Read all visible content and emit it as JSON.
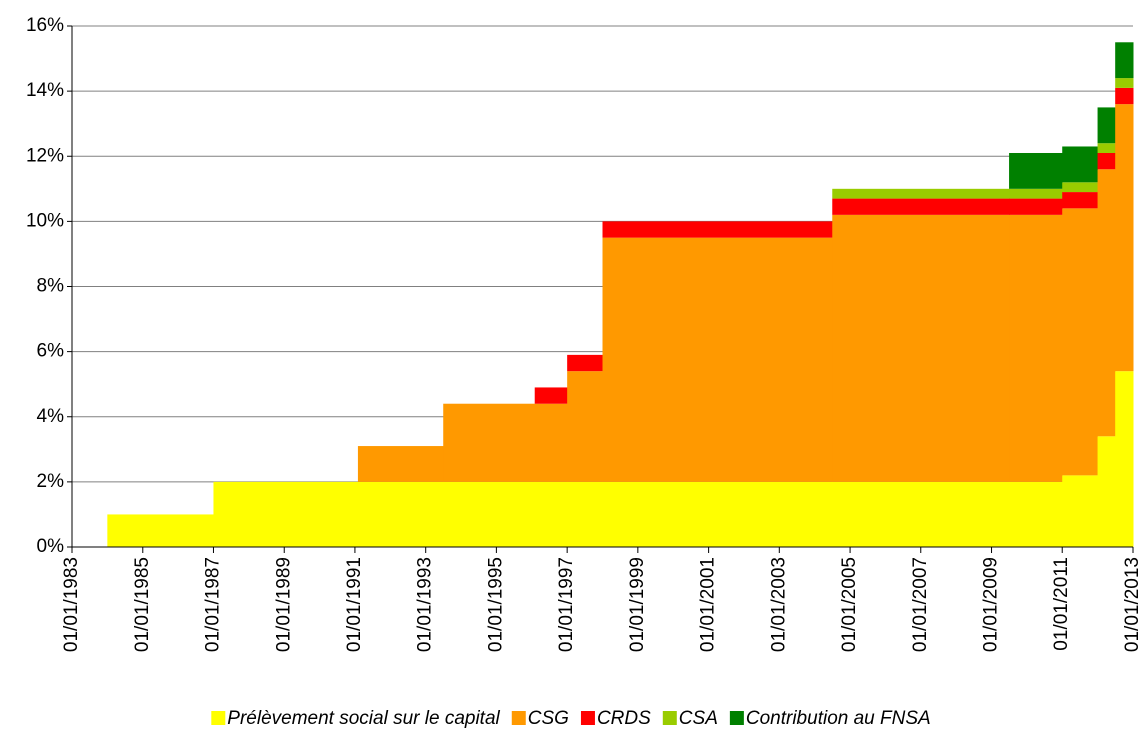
{
  "chart_data": {
    "type": "stacked-step-area",
    "x": [
      "1984-01-01",
      "1987-01-01",
      "1991-02-01",
      "1993-07-01",
      "1996-02-01",
      "1997-01-01",
      "1998-01-01",
      "2004-07-01",
      "2009-07-01",
      "2011-01-01",
      "2012-01-01",
      "2012-07-01"
    ],
    "series": [
      {
        "name": "Prélèvement social sur le capital",
        "color": "#ffff00",
        "values": [
          1,
          2,
          2,
          2,
          2,
          2,
          2,
          2,
          2,
          2.2,
          3.4,
          5.4
        ]
      },
      {
        "name": "CSG",
        "color": "#ff9900",
        "values": [
          0,
          0,
          1.1,
          2.4,
          2.4,
          3.4,
          7.5,
          8.2,
          8.2,
          8.2,
          8.2,
          8.2
        ]
      },
      {
        "name": "CRDS",
        "color": "#ff0000",
        "values": [
          0,
          0,
          0,
          0,
          0.5,
          0.5,
          0.5,
          0.5,
          0.5,
          0.5,
          0.5,
          0.5
        ]
      },
      {
        "name": "CSA",
        "color": "#99cc00",
        "values": [
          0,
          0,
          0,
          0,
          0,
          0,
          0,
          0.3,
          0.3,
          0.3,
          0.3,
          0.3
        ]
      },
      {
        "name": "Contribution au FNSA",
        "color": "#008000",
        "values": [
          0,
          0,
          0,
          0,
          0,
          0,
          0,
          0,
          1.1,
          1.1,
          1.1,
          1.1
        ]
      }
    ],
    "xlim": [
      "1983-01-01",
      "2013-01-01"
    ],
    "xticks": [
      {
        "value": "1983-01-01",
        "label": "01/01/1983"
      },
      {
        "value": "1985-01-01",
        "label": "01/01/1985"
      },
      {
        "value": "1987-01-01",
        "label": "01/01/1987"
      },
      {
        "value": "1989-01-01",
        "label": "01/01/1989"
      },
      {
        "value": "1991-01-01",
        "label": "01/01/1991"
      },
      {
        "value": "1993-01-01",
        "label": "01/01/1993"
      },
      {
        "value": "1995-01-01",
        "label": "01/01/1995"
      },
      {
        "value": "1997-01-01",
        "label": "01/01/1997"
      },
      {
        "value": "1999-01-01",
        "label": "01/01/1999"
      },
      {
        "value": "2001-01-01",
        "label": "01/01/2001"
      },
      {
        "value": "2003-01-01",
        "label": "01/01/2003"
      },
      {
        "value": "2005-01-01",
        "label": "01/01/2005"
      },
      {
        "value": "2007-01-01",
        "label": "01/01/2007"
      },
      {
        "value": "2009-01-01",
        "label": "01/01/2009"
      },
      {
        "value": "2011-01-01",
        "label": "01/01/2011"
      },
      {
        "value": "2013-01-01",
        "label": "01/01/2013"
      }
    ],
    "ylim": [
      0,
      16
    ],
    "yticks": [
      {
        "value": 0,
        "label": "0%"
      },
      {
        "value": 2,
        "label": "2%"
      },
      {
        "value": 4,
        "label": "4%"
      },
      {
        "value": 6,
        "label": "6%"
      },
      {
        "value": 8,
        "label": "8%"
      },
      {
        "value": 10,
        "label": "10%"
      },
      {
        "value": 12,
        "label": "12%"
      },
      {
        "value": 14,
        "label": "14%"
      },
      {
        "value": 16,
        "label": "16%"
      }
    ],
    "grid": true,
    "legend": "bottom"
  }
}
